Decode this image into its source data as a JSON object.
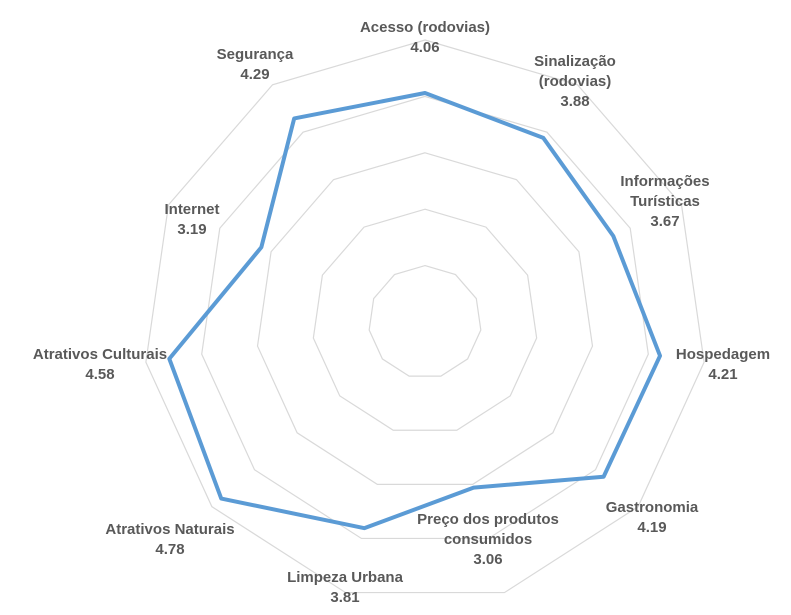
{
  "chart_data": {
    "type": "radar",
    "categories": [
      "Acesso (rodovias)",
      "Sinalização (rodovias)",
      "Informações Turísticas",
      "Hospedagem",
      "Gastronomia",
      "Preço dos produtos consumidos",
      "Limpeza Urbana",
      "Atrativos Naturais",
      "Atrativos Culturais",
      "Internet",
      "Segurança"
    ],
    "series": [
      {
        "color": "#5b9bd5",
        "values": [
          4.06,
          3.88,
          3.67,
          4.21,
          4.19,
          3.06,
          3.81,
          4.78,
          4.58,
          3.19,
          4.29
        ]
      }
    ],
    "ylim": [
      0,
      5
    ],
    "yticks": [
      1,
      2,
      3,
      4,
      5
    ],
    "grid": true
  }
}
